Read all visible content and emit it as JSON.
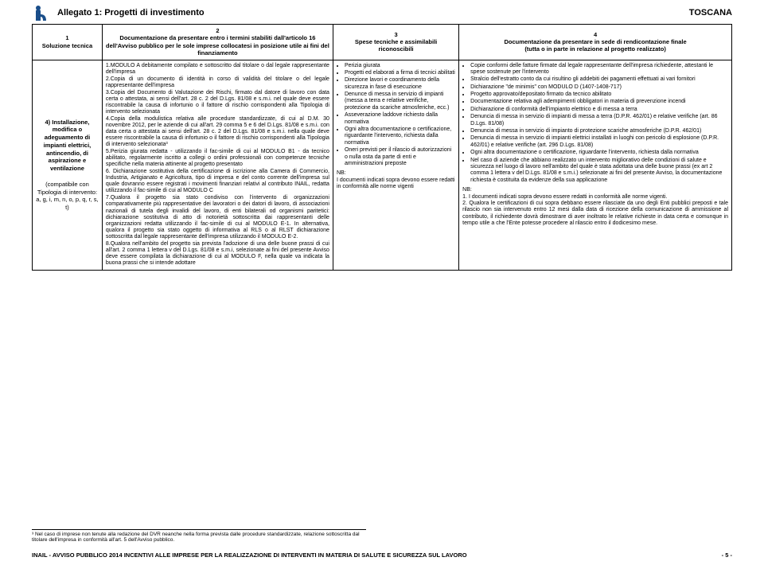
{
  "header": {
    "title": "Allegato 1: Progetti di investimento",
    "region": "TOSCANA"
  },
  "table": {
    "headers": {
      "c1": "1\nSoluzione tecnica",
      "c2": "2\nDocumentazione da presentare entro i termini stabiliti dall'articolo 16 dell'Avviso pubblico per le sole imprese collocatesi in posizione utile ai fini del finanziamento",
      "c3": "3\nSpese tecniche e assimilabili riconoscibili",
      "c4": "4\nDocumentazione da presentare in sede di rendicontazione finale\n(tutta o in parte in relazione al progetto realizzato)"
    },
    "row": {
      "c1_main": "4) Installazione, modifica o adeguamento di impianti elettrici, antincendio, di aspirazione e ventilazione",
      "c1_sub": "(compatibile con Tipologia di intervento:\na, g, i, m, n, o, p, q, r, s, t)",
      "c2_items": [
        "1.MODULO A debitamente compilato e sottoscritto dal titolare o dal legale rappresentante dell'impresa",
        "2.Copia di un documento di identità in corso di validità del titolare o del legale rappresentante dell'impresa",
        "3.Copia del Documento di Valutazione dei Rischi, firmato dal datore di lavoro con data certa o attestata, ai sensi dell'art. 28 c. 2 del D.Lgs. 81/08 e s.m.i. nel quale deve essere riscontrabile la causa di infortunio o il fattore di rischio corrispondenti alla Tipologia di intervento selezionata",
        "4.Copia della modulistica relativa alle procedure standardizzate, di cui al D.M. 30 novembre 2012, per le aziende di cui all'art. 29 comma 5 e 6 del D.Lgs. 81/08 e s.m.i. con data certa o attestata ai sensi dell'art. 28 c. 2 del D.Lgs. 81/08 e s.m.i. nella quale deve essere riscontrabile la causa di infortunio o il fattore di rischio corrispondenti alla Tipologia di intervento selezionata³",
        "5.Perizia giurata redatta - utilizzando il fac-simile di cui al MODULO B1 - da tecnico abilitato, regolarmente iscritto a collegi o ordini professionali con competenze tecniche specifiche nella materia attinente al progetto presentato",
        "6. Dichiarazione sostitutiva della certificazione di iscrizione alla Camera di Commercio, Industria, Artigianato e Agricoltura, tipo di impresa e del conto corrente dell'impresa sul quale dovranno essere registrati i movimenti finanziari relativi al contributo INAIL, redatta utilizzando il fac-simile di cui al MODULO C",
        "7.Qualora il progetto sia stato condiviso con l'intervento di organizzazioni comparativamente più rappresentative dei lavoratori o dei datori di lavoro, di associazioni nazionali di tutela degli invalidi del lavoro, di enti bilaterali od organismi paritetici: dichiarazione sostitutiva di atto di notorietà sottoscritta dai rappresentanti delle organizzazioni redatta utilizzando il fac-simile di cui al MODULO E-1. In alternativa, qualora il progetto sia stato oggetto di informativa al RLS o al RLST dichiarazione sottoscritta dal legale rappresentante dell'impresa utilizzando il MODULO E-2.",
        "8.Qualora nell'ambito del progetto sia prevista l'adozione di una delle buone prassi di cui all'art. 2 comma 1 lettera v del D.Lgs. 81/08 e s.m.i, selezionate ai fini del presente Avviso deve essere compilata la dichiarazione di cui al MODULO F, nella quale va indicata la buona prassi che si intende adottare"
      ],
      "c3_items": [
        "Perizia giurata",
        "Progetti ed elaborati a firma di tecnici abilitati",
        "Direzione lavori e coordinamento della sicurezza in fase di esecuzione",
        "Denunce di messa in servizio di impianti (messa a terra e relative verifiche, protezione da scariche atmosferiche, ecc.)",
        "Asseverazione laddove richiesto dalla normativa",
        "Ogni altra documentazione o certificazione, riguardante l'intervento, richiesta dalla normativa",
        "Oneri previsti per il rilascio di autorizzazioni o nulla osta da parte di enti e amministrazioni preposte"
      ],
      "c3_nb": "NB:\nI documenti indicati sopra devono essere redatti in conformità alle norme vigenti",
      "c4_items": [
        "Copie conformi delle fatture firmate dal legale rappresentante dell'impresa richiedente, attestanti le spese sostenute per l'intervento",
        "Stralcio dell'estratto conto da cui risultino gli addebiti dei pagamenti effettuati ai vari fornitori",
        "Dichiarazione \"de minimis\" con MODULO D (1407-1408-717)",
        "Progetto approvato/depositato firmato da tecnico abilitato",
        "Documentazione relativa agli adempimenti obbligatori in materia di prevenzione incendi",
        "Dichiarazione di conformità dell'impianto elettrico e di messa a terra",
        "Denuncia di messa in servizio di impianti di messa a terra (D.P.R. 462/01) e relative verifiche (art. 86 D.Lgs. 81/08)",
        "Denuncia di messa in servizio di impianto di protezione scariche atmosferiche (D.P.R. 462/01)",
        "Denuncia di messa in servizio di impianti elettrici installati in luoghi con pericolo di esplosione (D.P.R. 462/01) e relative verifiche (art. 296 D.Lgs. 81/08)",
        "Ogni altra documentazione o certificazione, riguardante l'intervento, richiesta dalla normativa",
        "Nel caso di aziende che abbiano realizzato un intervento migliorativo delle condizioni di salute e sicurezza nel luogo di lavoro nell'ambito del quale è stata adottata una delle buone prassi (ex art 2 comma 1 lettera v del D.Lgs. 81/08 e s.m.i.) selezionate ai fini del presente Avviso, la documentazione richiesta è costituita da evidenze della sua applicazione"
      ],
      "c4_nb": "NB:\n1. I documenti indicati sopra devono essere redatti in conformità alle norme vigenti.\n2. Qualora le certificazioni di cui sopra debbano essere rilasciate da uno degli Enti pubblici preposti e tale rilascio non sia intervenuto entro 12 mesi dalla data di ricezione della comunicazione di ammissione al contributo, il richiedente dovrà dimostrare di aver inoltrato le relative richieste in data certa e comunque in tempo utile a che l'Ente potesse procedere al rilascio entro il dodicesimo mese."
    }
  },
  "footnote": "³ Nel caso di imprese non tenute alla redazione del DVR neanche nella forma prevista dalle procedure standardizzate, relazione sottoscritta dal titolare dell'impresa in conformità all'art. 5 dell'Avviso pubblico.",
  "footer": {
    "left": "INAIL - AVVISO PUBBLICO 2014 INCENTIVI ALLE IMPRESE PER LA REALIZZAZIONE DI INTERVENTI IN MATERIA DI SALUTE E SICUREZZA SUL LAVORO",
    "right": "- 5 -"
  },
  "colors": {
    "text": "#000000",
    "border": "#000000",
    "background": "#ffffff",
    "logo_accent": "#1a4e8a"
  }
}
